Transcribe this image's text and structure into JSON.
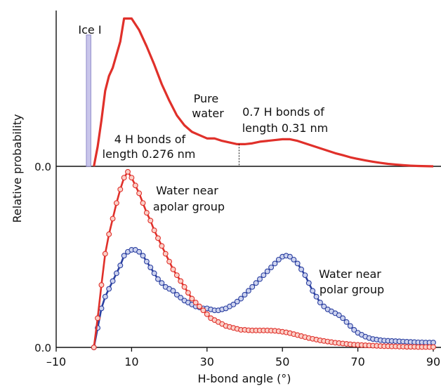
{
  "chart_data": [
    {
      "type": "line",
      "panel": "top",
      "ylabel_shared": "Relative probability",
      "ytick_label": "0.0",
      "xlim": [
        -10,
        90
      ],
      "bar": {
        "label": "Ice I",
        "x_range": [
          -2,
          -0.8
        ],
        "value": 0.8
      },
      "series": [
        {
          "name": "Pure water",
          "color": "#e0302a",
          "x": [
            0,
            1,
            2,
            3,
            4,
            5,
            6,
            7,
            8,
            10,
            12,
            14,
            16,
            18,
            20,
            22,
            24,
            26,
            28,
            30,
            32,
            34,
            36,
            38,
            40,
            42,
            44,
            46,
            48,
            50,
            52,
            54,
            56,
            58,
            60,
            62,
            64,
            66,
            68,
            70,
            72,
            74,
            76,
            78,
            80,
            82,
            84,
            86,
            88,
            90
          ],
          "y": [
            0.0,
            0.12,
            0.28,
            0.46,
            0.55,
            0.6,
            0.68,
            0.76,
            0.9,
            0.9,
            0.83,
            0.73,
            0.62,
            0.5,
            0.4,
            0.31,
            0.25,
            0.21,
            0.19,
            0.17,
            0.17,
            0.155,
            0.145,
            0.135,
            0.135,
            0.14,
            0.15,
            0.155,
            0.16,
            0.165,
            0.165,
            0.155,
            0.14,
            0.125,
            0.11,
            0.095,
            0.08,
            0.068,
            0.055,
            0.045,
            0.036,
            0.028,
            0.021,
            0.015,
            0.011,
            0.007,
            0.004,
            0.002,
            0.001,
            0.0
          ]
        }
      ],
      "annotations": [
        {
          "lines": [
            "4 H bonds of",
            "length 0.276 nm"
          ]
        },
        {
          "lines": [
            "Pure",
            "water"
          ]
        },
        {
          "lines": [
            "0.7 H bonds of",
            "length 0.31 nm"
          ]
        }
      ],
      "divider_x": 38.5
    },
    {
      "type": "line",
      "panel": "bottom",
      "xlabel": "H-bond angle (°)",
      "ytick_label": "0.0",
      "xlim": [
        -10,
        90
      ],
      "xticks": [
        -10,
        10,
        30,
        50,
        70,
        90
      ],
      "xtick_labels": [
        "–10",
        "10",
        "30",
        "50",
        "70",
        "90"
      ],
      "series": [
        {
          "name": "Water near apolar group",
          "color": "#e0302a",
          "marker_fill": "#fbd0c8",
          "x": [
            0,
            1,
            2,
            3,
            4,
            5,
            6,
            7,
            8,
            9,
            10,
            11,
            12,
            13,
            14,
            15,
            16,
            17,
            18,
            19,
            20,
            21,
            22,
            23,
            24,
            25,
            26,
            27,
            28,
            29,
            30,
            31,
            32,
            33,
            34,
            35,
            36,
            37,
            38,
            39,
            40,
            41,
            42,
            43,
            44,
            45,
            46,
            47,
            48,
            49,
            50,
            51,
            52,
            53,
            54,
            55,
            56,
            57,
            58,
            59,
            60,
            61,
            62,
            63,
            64,
            65,
            66,
            67,
            68,
            69,
            70,
            71,
            72,
            73,
            74,
            75,
            76,
            77,
            78,
            79,
            80,
            81,
            82,
            83,
            84,
            85,
            86,
            87,
            88,
            89,
            90
          ],
          "y": [
            0.0,
            0.15,
            0.32,
            0.48,
            0.58,
            0.66,
            0.74,
            0.81,
            0.87,
            0.9,
            0.87,
            0.83,
            0.79,
            0.74,
            0.69,
            0.65,
            0.6,
            0.56,
            0.52,
            0.48,
            0.44,
            0.4,
            0.37,
            0.34,
            0.31,
            0.28,
            0.25,
            0.23,
            0.21,
            0.19,
            0.17,
            0.15,
            0.14,
            0.13,
            0.12,
            0.11,
            0.105,
            0.1,
            0.095,
            0.09,
            0.09,
            0.088,
            0.087,
            0.087,
            0.087,
            0.087,
            0.087,
            0.086,
            0.085,
            0.083,
            0.08,
            0.077,
            0.073,
            0.068,
            0.063,
            0.058,
            0.053,
            0.048,
            0.044,
            0.04,
            0.036,
            0.033,
            0.03,
            0.027,
            0.024,
            0.022,
            0.02,
            0.018,
            0.016,
            0.014,
            0.013,
            0.012,
            0.011,
            0.01,
            0.009,
            0.008,
            0.007,
            0.006,
            0.006,
            0.005,
            0.005,
            0.004,
            0.004,
            0.003,
            0.003,
            0.003,
            0.002,
            0.002,
            0.002,
            0.002,
            0.002
          ]
        },
        {
          "name": "Water near polar group",
          "color": "#2a3fa0",
          "marker_fill": "#cdd3ef",
          "x": [
            0,
            1,
            2,
            3,
            4,
            5,
            6,
            7,
            8,
            9,
            10,
            11,
            12,
            13,
            14,
            15,
            16,
            17,
            18,
            19,
            20,
            21,
            22,
            23,
            24,
            25,
            26,
            27,
            28,
            29,
            30,
            31,
            32,
            33,
            34,
            35,
            36,
            37,
            38,
            39,
            40,
            41,
            42,
            43,
            44,
            45,
            46,
            47,
            48,
            49,
            50,
            51,
            52,
            53,
            54,
            55,
            56,
            57,
            58,
            59,
            60,
            61,
            62,
            63,
            64,
            65,
            66,
            67,
            68,
            69,
            70,
            71,
            72,
            73,
            74,
            75,
            76,
            77,
            78,
            79,
            80,
            81,
            82,
            83,
            84,
            85,
            86,
            87,
            88,
            89,
            90
          ],
          "y": [
            0.0,
            0.1,
            0.2,
            0.26,
            0.3,
            0.34,
            0.38,
            0.42,
            0.47,
            0.49,
            0.5,
            0.5,
            0.49,
            0.47,
            0.44,
            0.41,
            0.38,
            0.35,
            0.33,
            0.31,
            0.3,
            0.29,
            0.27,
            0.255,
            0.24,
            0.23,
            0.22,
            0.21,
            0.205,
            0.2,
            0.2,
            0.195,
            0.19,
            0.19,
            0.195,
            0.2,
            0.21,
            0.22,
            0.235,
            0.25,
            0.27,
            0.29,
            0.31,
            0.33,
            0.35,
            0.37,
            0.39,
            0.41,
            0.43,
            0.45,
            0.465,
            0.47,
            0.465,
            0.45,
            0.43,
            0.4,
            0.37,
            0.33,
            0.29,
            0.26,
            0.23,
            0.21,
            0.195,
            0.185,
            0.175,
            0.165,
            0.15,
            0.13,
            0.11,
            0.09,
            0.075,
            0.065,
            0.055,
            0.048,
            0.043,
            0.04,
            0.037,
            0.035,
            0.034,
            0.033,
            0.032,
            0.031,
            0.03,
            0.029,
            0.028,
            0.027,
            0.026,
            0.026,
            0.025,
            0.025,
            0.025
          ]
        }
      ],
      "annotations": [
        {
          "lines": [
            "Water near",
            "apolar group"
          ]
        },
        {
          "lines": [
            "Water near",
            "polar group"
          ]
        }
      ]
    }
  ]
}
